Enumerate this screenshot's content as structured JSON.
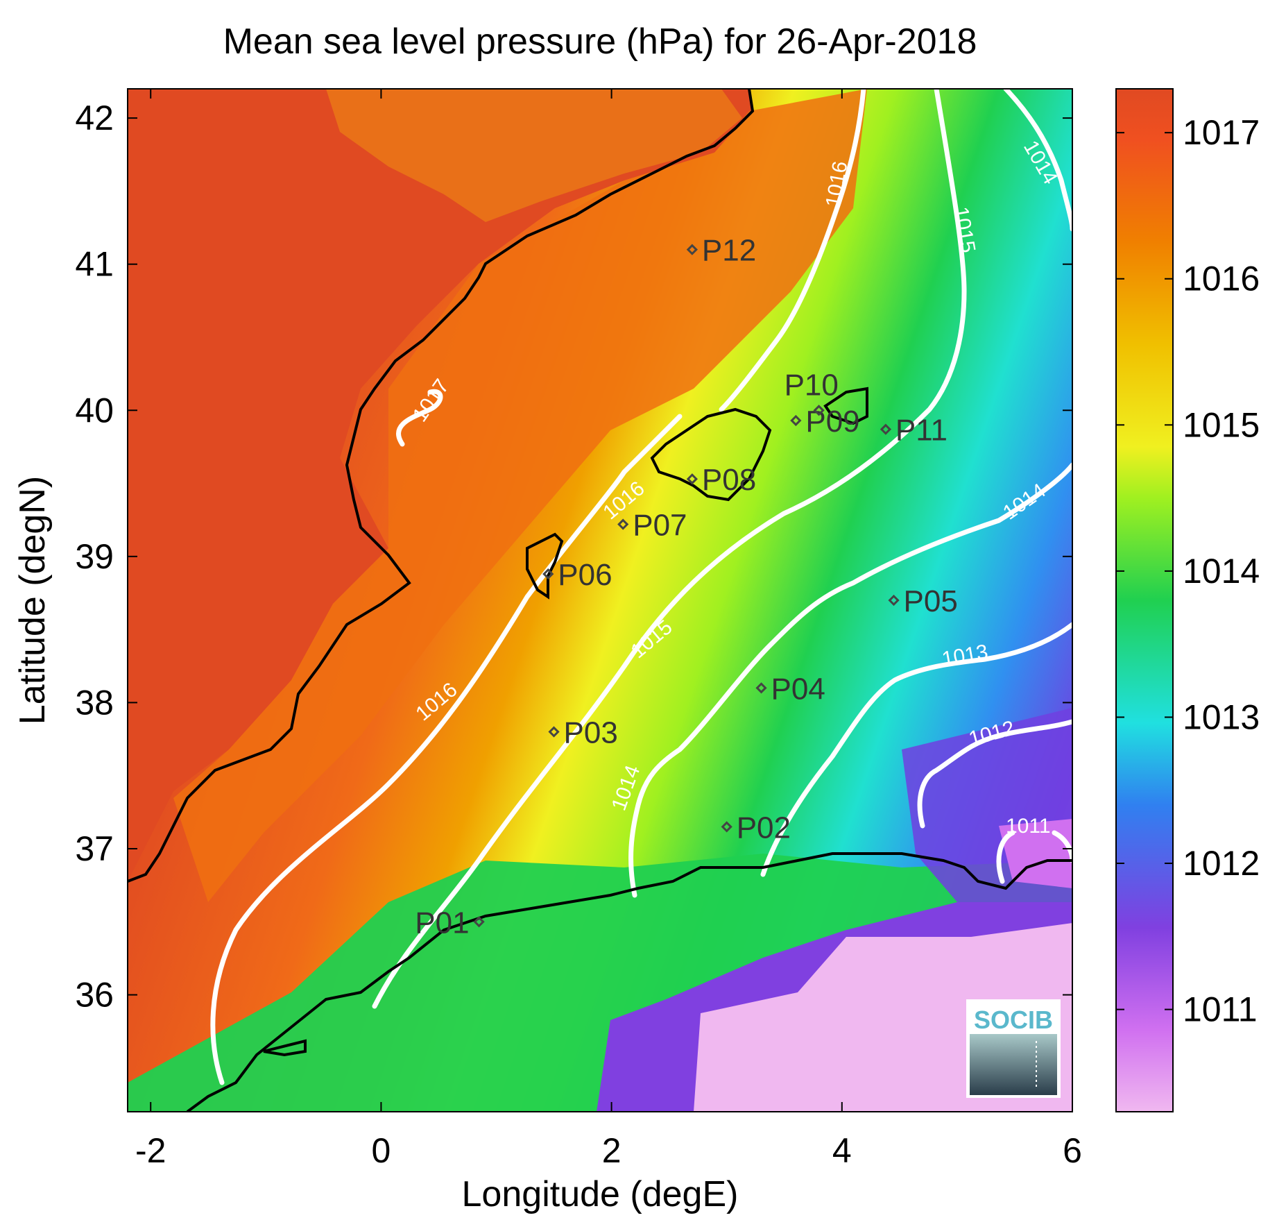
{
  "title": "Mean sea level pressure (hPa) for 26-Apr-2018",
  "xlabel": "Longitude (degE)",
  "ylabel": "Latitude (degN)",
  "x_ticks": [
    "-2",
    "0",
    "2",
    "4",
    "6"
  ],
  "y_ticks": [
    "36",
    "37",
    "38",
    "39",
    "40",
    "41",
    "42"
  ],
  "colorbar": {
    "range": [
      1010.3,
      1017.3
    ],
    "ticks": [
      "1011",
      "1012",
      "1013",
      "1014",
      "1015",
      "1016",
      "1017"
    ],
    "colors": [
      "#f0b8f0",
      "#c040f0",
      "#7040e0",
      "#3090f0",
      "#20e0e0",
      "#20d050",
      "#a0f020",
      "#f0f020",
      "#f0c000",
      "#f08000",
      "#f05020",
      "#e04a22"
    ]
  },
  "contour_labels": [
    "1017",
    "1016",
    "1016",
    "1016",
    "1015",
    "1015",
    "1014",
    "1014",
    "1014",
    "1013",
    "1012",
    "1011"
  ],
  "stations": [
    {
      "id": "P01",
      "lon": 0.85,
      "lat": 36.5
    },
    {
      "id": "P02",
      "lon": 3.0,
      "lat": 37.15
    },
    {
      "id": "P03",
      "lon": 1.5,
      "lat": 37.8
    },
    {
      "id": "P04",
      "lon": 3.3,
      "lat": 38.1
    },
    {
      "id": "P05",
      "lon": 4.45,
      "lat": 38.7
    },
    {
      "id": "P06",
      "lon": 1.45,
      "lat": 38.88
    },
    {
      "id": "P07",
      "lon": 2.1,
      "lat": 39.22
    },
    {
      "id": "P08",
      "lon": 2.7,
      "lat": 39.53
    },
    {
      "id": "P09",
      "lon": 3.6,
      "lat": 39.93
    },
    {
      "id": "P10",
      "lon": 3.8,
      "lat": 40.0
    },
    {
      "id": "P11",
      "lon": 4.38,
      "lat": 39.87
    },
    {
      "id": "P12",
      "lon": 2.7,
      "lat": 41.1
    }
  ],
  "logo": "SOCIB"
}
